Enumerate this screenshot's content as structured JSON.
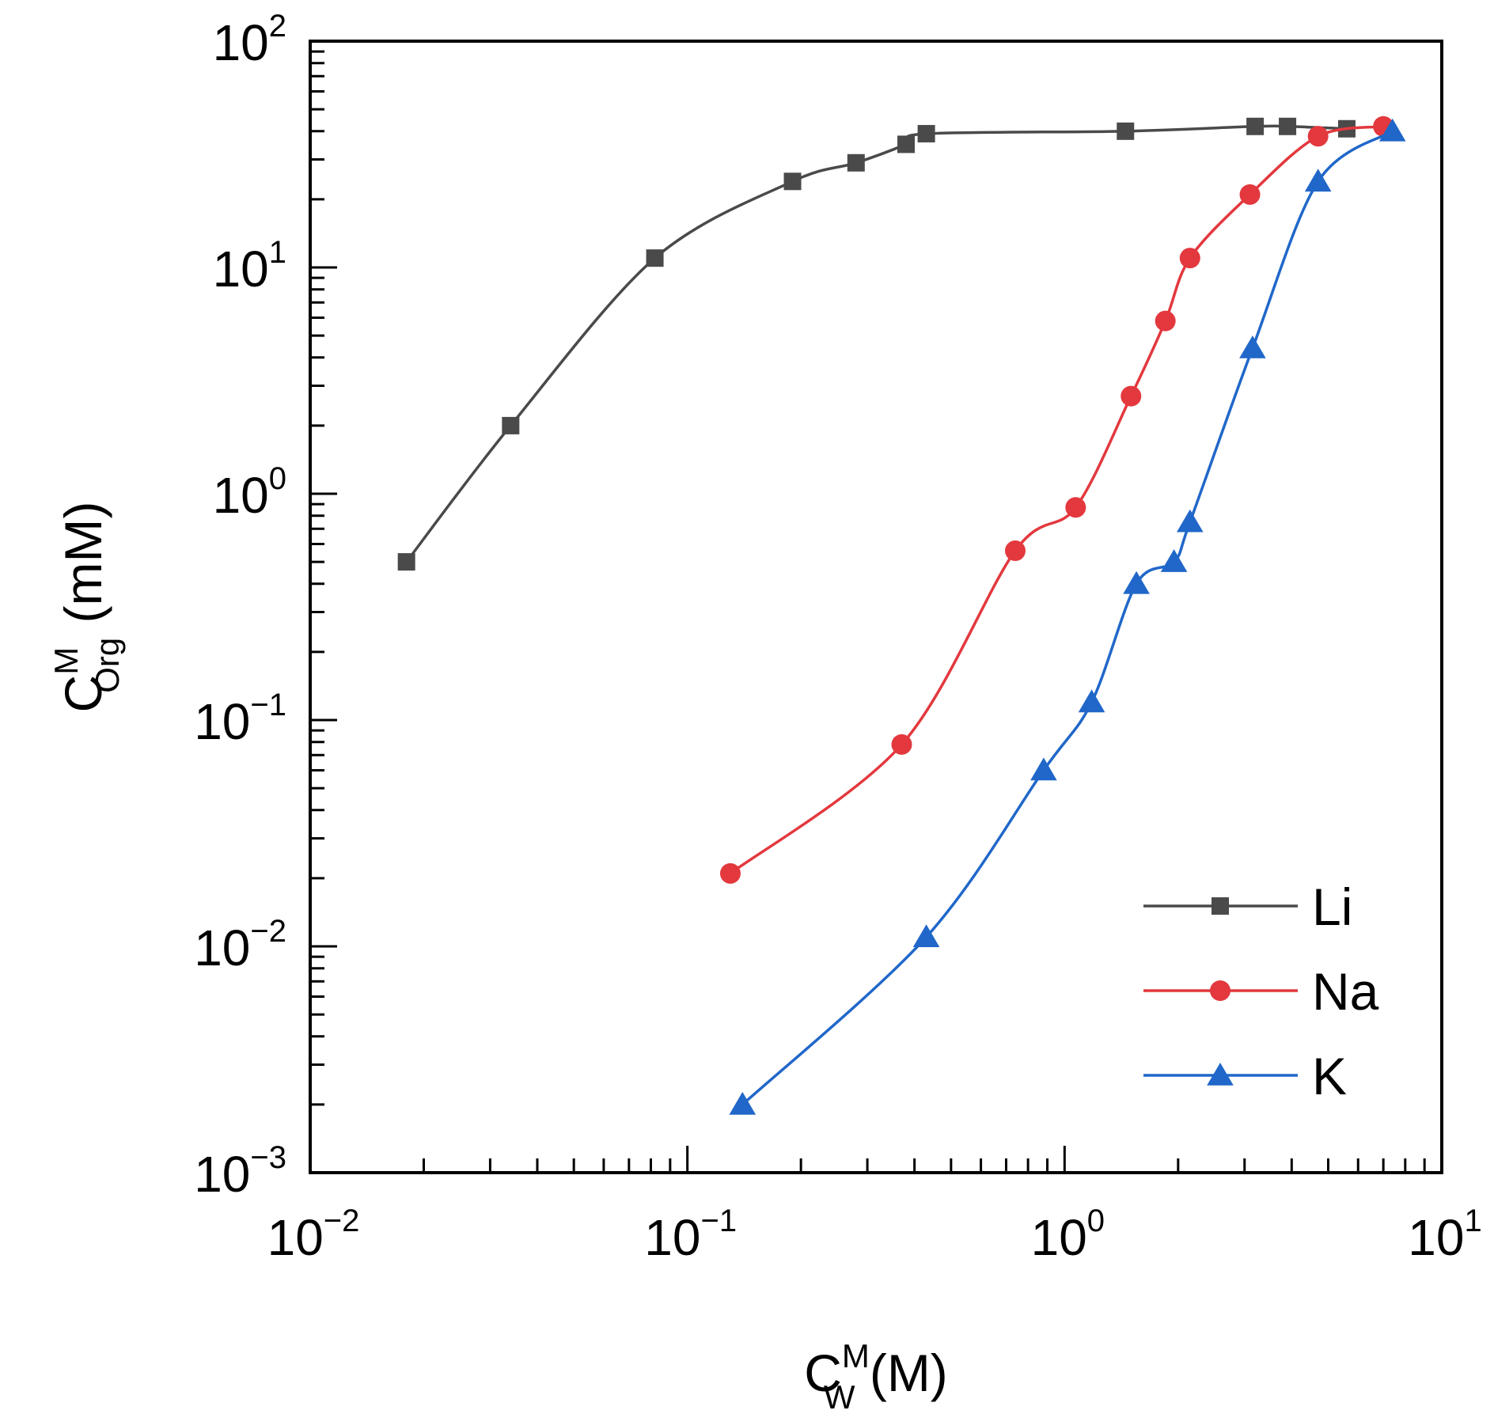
{
  "chart_data": {
    "type": "line",
    "title": "",
    "xscale": "log",
    "yscale": "log",
    "xlim": [
      0.01,
      10
    ],
    "ylim": [
      0.001,
      100
    ],
    "x_tick_labels": [
      {
        "value": 0.01,
        "base": "10",
        "exp": "−2"
      },
      {
        "value": 0.1,
        "base": "10",
        "exp": "−1"
      },
      {
        "value": 1,
        "base": "10",
        "exp": "0"
      },
      {
        "value": 10,
        "base": "10",
        "exp": "1"
      }
    ],
    "y_tick_labels": [
      {
        "value": 100,
        "base": "10",
        "exp": "2"
      },
      {
        "value": 10,
        "base": "10",
        "exp": "1"
      },
      {
        "value": 1,
        "base": "10",
        "exp": "0"
      },
      {
        "value": 0.1,
        "base": "10",
        "exp": "−1"
      },
      {
        "value": 0.01,
        "base": "10",
        "exp": "−2"
      },
      {
        "value": 0.001,
        "base": "10",
        "exp": "−3"
      }
    ],
    "xlabel": {
      "main": "C",
      "sup": "M",
      "sub": "W",
      "unit": " (M)"
    },
    "ylabel": {
      "main": "C",
      "sup": "M",
      "sub": "Org",
      "unit": " (mM)"
    },
    "legend_position": "bottom-right",
    "series": [
      {
        "name": "Li",
        "marker": "square",
        "color": "#4a4a4a",
        "x": [
          0.018,
          0.034,
          0.082,
          0.19,
          0.28,
          0.38,
          0.43,
          1.45,
          3.2,
          3.9,
          5.6
        ],
        "y": [
          0.5,
          2.0,
          11.0,
          24.0,
          29.0,
          35.0,
          39.0,
          40.0,
          42.0,
          42.0,
          41.0
        ]
      },
      {
        "name": "Na",
        "marker": "circle",
        "color": "#e3383e",
        "x": [
          0.13,
          0.37,
          0.74,
          1.07,
          1.5,
          1.85,
          2.15,
          3.1,
          4.7,
          7.0
        ],
        "y": [
          0.021,
          0.078,
          0.56,
          0.87,
          2.7,
          5.8,
          11.0,
          21.0,
          38.0,
          42.0
        ]
      },
      {
        "name": "K",
        "marker": "triangle",
        "color": "#2067c9",
        "x": [
          0.14,
          0.43,
          0.88,
          1.18,
          1.55,
          1.95,
          2.15,
          3.15,
          4.7,
          7.4
        ],
        "y": [
          0.002,
          0.011,
          0.06,
          0.12,
          0.4,
          0.5,
          0.75,
          4.4,
          24.0,
          40.0
        ]
      }
    ]
  }
}
